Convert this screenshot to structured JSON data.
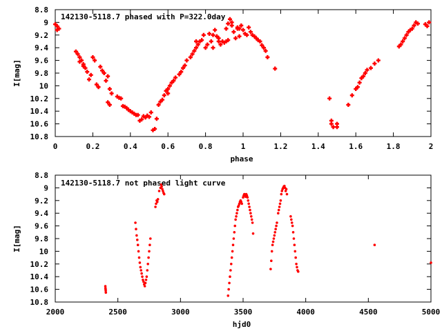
{
  "chart_data": [
    {
      "type": "scatter",
      "title": "142130-5118.7 phased with P=322.0day",
      "xlabel": "phase",
      "ylabel": "I[mag]",
      "xlim": [
        0,
        2
      ],
      "ylim": [
        10.8,
        8.8
      ],
      "y_inverted": true,
      "grid": false,
      "xticks": [
        0,
        0.2,
        0.4,
        0.6,
        0.8,
        1,
        1.2,
        1.4,
        1.6,
        1.8,
        2
      ],
      "xtick_labels": [
        "0",
        "0.2",
        "0.4",
        "0.6",
        "0.8",
        "1",
        "1.2",
        "1.4",
        "1.6",
        "1.8",
        "2"
      ],
      "yticks": [
        8.8,
        9,
        9.2,
        9.4,
        9.6,
        9.8,
        10,
        10.2,
        10.4,
        10.6,
        10.8
      ],
      "ytick_labels": [
        "8.8",
        "9",
        "9.2",
        "9.4",
        "9.6",
        "9.8",
        "10",
        "10.2",
        "10.4",
        "10.6",
        "10.8"
      ],
      "marker": "plus",
      "color": "#ff0000",
      "points": [
        [
          0.0,
          9.03
        ],
        [
          0.01,
          9.06
        ],
        [
          0.02,
          9.1
        ],
        [
          0.01,
          9.12
        ],
        [
          0.11,
          9.46
        ],
        [
          0.12,
          9.5
        ],
        [
          0.13,
          9.55
        ],
        [
          0.14,
          9.6
        ],
        [
          0.15,
          9.66
        ],
        [
          0.16,
          9.72
        ],
        [
          0.17,
          9.78
        ],
        [
          0.13,
          9.62
        ],
        [
          0.15,
          9.69
        ],
        [
          0.18,
          9.9
        ],
        [
          0.19,
          9.83
        ],
        [
          0.2,
          9.55
        ],
        [
          0.21,
          9.6
        ],
        [
          0.22,
          9.98
        ],
        [
          0.23,
          10.02
        ],
        [
          0.24,
          9.7
        ],
        [
          0.25,
          9.76
        ],
        [
          0.26,
          9.8
        ],
        [
          0.27,
          9.92
        ],
        [
          0.28,
          9.85
        ],
        [
          0.29,
          10.05
        ],
        [
          0.3,
          10.12
        ],
        [
          0.28,
          10.26
        ],
        [
          0.29,
          10.3
        ],
        [
          0.33,
          10.17
        ],
        [
          0.34,
          10.19
        ],
        [
          0.35,
          10.2
        ],
        [
          0.36,
          10.32
        ],
        [
          0.37,
          10.33
        ],
        [
          0.38,
          10.35
        ],
        [
          0.39,
          10.38
        ],
        [
          0.4,
          10.4
        ],
        [
          0.41,
          10.42
        ],
        [
          0.42,
          10.44
        ],
        [
          0.43,
          10.46
        ],
        [
          0.44,
          10.46
        ],
        [
          0.45,
          10.55
        ],
        [
          0.46,
          10.53
        ],
        [
          0.47,
          10.48
        ],
        [
          0.48,
          10.5
        ],
        [
          0.49,
          10.47
        ],
        [
          0.5,
          10.49
        ],
        [
          0.51,
          10.42
        ],
        [
          0.52,
          10.7
        ],
        [
          0.53,
          10.68
        ],
        [
          0.54,
          10.52
        ],
        [
          0.55,
          10.3
        ],
        [
          0.56,
          10.25
        ],
        [
          0.57,
          10.22
        ],
        [
          0.58,
          10.15
        ],
        [
          0.59,
          10.08
        ],
        [
          0.6,
          10.05
        ],
        [
          0.61,
          10.0
        ],
        [
          0.6,
          10.12
        ],
        [
          0.62,
          9.95
        ],
        [
          0.63,
          9.92
        ],
        [
          0.64,
          9.87
        ],
        [
          0.66,
          9.82
        ],
        [
          0.67,
          9.78
        ],
        [
          0.68,
          9.72
        ],
        [
          0.69,
          9.68
        ],
        [
          0.7,
          9.6
        ],
        [
          0.72,
          9.55
        ],
        [
          0.73,
          9.5
        ],
        [
          0.75,
          9.4
        ],
        [
          0.74,
          9.45
        ],
        [
          0.76,
          9.35
        ],
        [
          0.77,
          9.3
        ],
        [
          0.78,
          9.28
        ],
        [
          0.79,
          9.2
        ],
        [
          0.8,
          9.4
        ],
        [
          0.81,
          9.35
        ],
        [
          0.82,
          9.18
        ],
        [
          0.83,
          9.3
        ],
        [
          0.84,
          9.4
        ],
        [
          0.85,
          9.12
        ],
        [
          0.86,
          9.22
        ],
        [
          0.87,
          9.25
        ],
        [
          0.88,
          9.35
        ],
        [
          0.89,
          9.3
        ],
        [
          0.9,
          9.32
        ],
        [
          0.91,
          9.3
        ],
        [
          0.92,
          9.28
        ],
        [
          0.93,
          8.95
        ],
        [
          0.94,
          9.0
        ],
        [
          0.95,
          9.15
        ],
        [
          0.96,
          9.25
        ],
        [
          0.97,
          9.1
        ],
        [
          0.98,
          9.22
        ],
        [
          0.99,
          9.05
        ],
        [
          1.0,
          9.12
        ],
        [
          1.01,
          9.18
        ],
        [
          1.02,
          9.2
        ],
        [
          1.03,
          9.08
        ],
        [
          1.04,
          9.15
        ],
        [
          1.05,
          9.2
        ],
        [
          1.06,
          9.22
        ],
        [
          1.07,
          9.25
        ],
        [
          1.08,
          9.28
        ],
        [
          1.09,
          9.3
        ],
        [
          1.1,
          9.36
        ],
        [
          1.11,
          9.4
        ],
        [
          1.12,
          9.45
        ],
        [
          1.13,
          9.55
        ],
        [
          1.17,
          9.73
        ],
        [
          0.91,
          9.1
        ],
        [
          0.92,
          9.02
        ],
        [
          0.94,
          9.05
        ],
        [
          0.97,
          9.08
        ],
        [
          0.98,
          9.1
        ],
        [
          0.84,
          9.2
        ],
        [
          0.87,
          9.3
        ],
        [
          0.75,
          9.3
        ],
        [
          1.46,
          10.2
        ],
        [
          1.47,
          10.55
        ],
        [
          1.47,
          10.6
        ],
        [
          1.48,
          10.65
        ],
        [
          1.5,
          10.6
        ],
        [
          1.5,
          10.65
        ],
        [
          1.56,
          10.3
        ],
        [
          1.58,
          10.15
        ],
        [
          1.6,
          10.05
        ],
        [
          1.61,
          10.02
        ],
        [
          1.62,
          9.95
        ],
        [
          1.63,
          9.88
        ],
        [
          1.64,
          9.85
        ],
        [
          1.65,
          9.8
        ],
        [
          1.66,
          9.75
        ],
        [
          1.68,
          9.72
        ],
        [
          1.7,
          9.65
        ],
        [
          1.72,
          9.6
        ],
        [
          1.83,
          9.38
        ],
        [
          1.84,
          9.35
        ],
        [
          1.85,
          9.3
        ],
        [
          1.86,
          9.25
        ],
        [
          1.87,
          9.2
        ],
        [
          1.88,
          9.15
        ],
        [
          1.89,
          9.12
        ],
        [
          1.9,
          9.1
        ],
        [
          1.91,
          9.05
        ],
        [
          1.92,
          9.0
        ],
        [
          1.93,
          9.02
        ],
        [
          1.97,
          9.03
        ],
        [
          1.98,
          9.06
        ],
        [
          1.99,
          9.0
        ]
      ]
    },
    {
      "type": "scatter",
      "title": "142130-5118.7 not phased light curve",
      "xlabel": "hjd0",
      "ylabel": "I[mag]",
      "xlim": [
        2000,
        5000
      ],
      "ylim": [
        10.8,
        8.8
      ],
      "y_inverted": true,
      "grid": false,
      "xticks": [
        2000,
        2500,
        3000,
        3500,
        4000,
        4500,
        5000
      ],
      "xtick_labels": [
        "2000",
        "2500",
        "3000",
        "3500",
        "4000",
        "4500",
        "5000"
      ],
      "yticks": [
        8.8,
        9,
        9.2,
        9.4,
        9.6,
        9.8,
        10,
        10.2,
        10.4,
        10.6,
        10.8
      ],
      "ytick_labels": [
        "8.8",
        "9",
        "9.2",
        "9.4",
        "9.6",
        "9.8",
        "10",
        "10.2",
        "10.4",
        "10.6",
        "10.8"
      ],
      "marker": "dot",
      "color": "#ff0000",
      "points": [
        [
          2400,
          10.55
        ],
        [
          2401,
          10.58
        ],
        [
          2402,
          10.6
        ],
        [
          2403,
          10.62
        ],
        [
          2404,
          10.65
        ],
        [
          2640,
          9.55
        ],
        [
          2645,
          9.65
        ],
        [
          2650,
          9.75
        ],
        [
          2655,
          9.82
        ],
        [
          2660,
          9.9
        ],
        [
          2665,
          10.0
        ],
        [
          2670,
          10.1
        ],
        [
          2675,
          10.18
        ],
        [
          2680,
          10.25
        ],
        [
          2685,
          10.3
        ],
        [
          2690,
          10.35
        ],
        [
          2695,
          10.4
        ],
        [
          2700,
          10.45
        ],
        [
          2705,
          10.48
        ],
        [
          2710,
          10.52
        ],
        [
          2715,
          10.55
        ],
        [
          2720,
          10.5
        ],
        [
          2725,
          10.45
        ],
        [
          2730,
          10.4
        ],
        [
          2735,
          10.3
        ],
        [
          2740,
          10.2
        ],
        [
          2745,
          10.1
        ],
        [
          2750,
          10.0
        ],
        [
          2755,
          9.9
        ],
        [
          2760,
          9.8
        ],
        [
          2800,
          9.3
        ],
        [
          2805,
          9.25
        ],
        [
          2810,
          9.2
        ],
        [
          2815,
          9.22
        ],
        [
          2820,
          9.18
        ],
        [
          2830,
          9.05
        ],
        [
          2840,
          9.0
        ],
        [
          2845,
          8.95
        ],
        [
          2850,
          8.98
        ],
        [
          2855,
          9.02
        ],
        [
          2860,
          9.05
        ],
        [
          2865,
          9.08
        ],
        [
          2870,
          9.1
        ],
        [
          3380,
          10.7
        ],
        [
          3385,
          10.6
        ],
        [
          3390,
          10.5
        ],
        [
          3395,
          10.4
        ],
        [
          3400,
          10.3
        ],
        [
          3405,
          10.2
        ],
        [
          3410,
          10.1
        ],
        [
          3415,
          10.0
        ],
        [
          3420,
          9.9
        ],
        [
          3425,
          9.8
        ],
        [
          3430,
          9.7
        ],
        [
          3435,
          9.6
        ],
        [
          3440,
          9.5
        ],
        [
          3445,
          9.45
        ],
        [
          3450,
          9.4
        ],
        [
          3455,
          9.35
        ],
        [
          3460,
          9.3
        ],
        [
          3465,
          9.28
        ],
        [
          3470,
          9.25
        ],
        [
          3475,
          9.22
        ],
        [
          3480,
          9.2
        ],
        [
          3485,
          9.22
        ],
        [
          3490,
          9.25
        ],
        [
          3500,
          9.15
        ],
        [
          3505,
          9.12
        ],
        [
          3510,
          9.1
        ],
        [
          3515,
          9.12
        ],
        [
          3520,
          9.14
        ],
        [
          3525,
          9.1
        ],
        [
          3530,
          9.12
        ],
        [
          3535,
          9.15
        ],
        [
          3540,
          9.2
        ],
        [
          3545,
          9.25
        ],
        [
          3550,
          9.3
        ],
        [
          3555,
          9.35
        ],
        [
          3560,
          9.4
        ],
        [
          3565,
          9.45
        ],
        [
          3570,
          9.5
        ],
        [
          3575,
          9.55
        ],
        [
          3580,
          9.72
        ],
        [
          3720,
          10.28
        ],
        [
          3725,
          10.15
        ],
        [
          3730,
          10.0
        ],
        [
          3735,
          9.9
        ],
        [
          3740,
          9.85
        ],
        [
          3745,
          9.8
        ],
        [
          3750,
          9.75
        ],
        [
          3755,
          9.7
        ],
        [
          3760,
          9.65
        ],
        [
          3765,
          9.6
        ],
        [
          3770,
          9.55
        ],
        [
          3780,
          9.4
        ],
        [
          3785,
          9.35
        ],
        [
          3790,
          9.3
        ],
        [
          3795,
          9.25
        ],
        [
          3800,
          9.2
        ],
        [
          3805,
          9.1
        ],
        [
          3810,
          9.05
        ],
        [
          3815,
          9.02
        ],
        [
          3820,
          9.0
        ],
        [
          3825,
          8.98
        ],
        [
          3830,
          8.97
        ],
        [
          3835,
          9.0
        ],
        [
          3840,
          9.05
        ],
        [
          3845,
          9.02
        ],
        [
          3850,
          9.1
        ],
        [
          3880,
          9.45
        ],
        [
          3885,
          9.5
        ],
        [
          3890,
          9.55
        ],
        [
          3895,
          9.6
        ],
        [
          3900,
          9.7
        ],
        [
          3905,
          9.8
        ],
        [
          3910,
          9.9
        ],
        [
          3915,
          10.0
        ],
        [
          3920,
          10.1
        ],
        [
          3925,
          10.2
        ],
        [
          3930,
          10.25
        ],
        [
          3935,
          10.3
        ],
        [
          3940,
          10.32
        ],
        [
          4550,
          9.9
        ],
        [
          5000,
          10.18
        ]
      ]
    }
  ]
}
